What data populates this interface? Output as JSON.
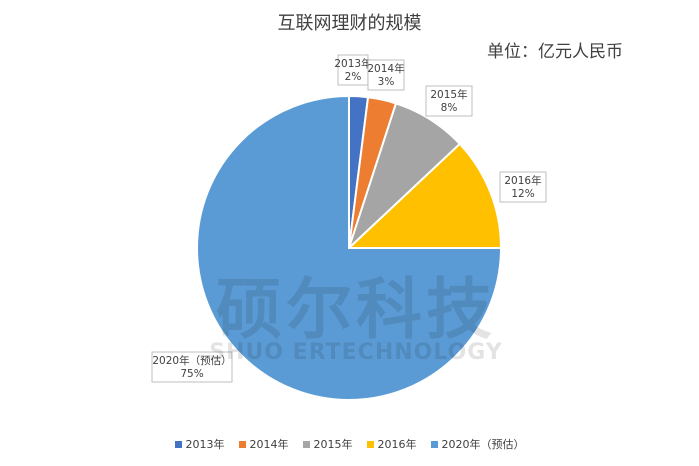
{
  "title": "互联网理财的规模",
  "unit": "单位：亿元人民币",
  "watermark": {
    "brand": "硕尔科技",
    "brand_en": "SHUO ERTECHNOLOGY"
  },
  "chart_data": {
    "type": "pie",
    "title": "互联网理财的规模",
    "categories": [
      "2013年",
      "2014年",
      "2015年",
      "2016年",
      "2020年（预估）"
    ],
    "values": [
      2,
      3,
      8,
      12,
      75
    ],
    "labels": [
      "2%",
      "3%",
      "8%",
      "12%",
      "75%"
    ],
    "colors": [
      "#4472C4",
      "#ED7D31",
      "#A5A5A5",
      "#FFC000",
      "#5B9BD5"
    ],
    "legend": "bottom"
  }
}
